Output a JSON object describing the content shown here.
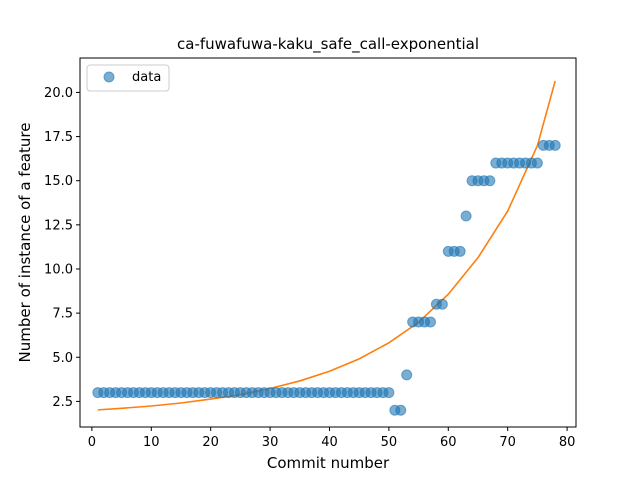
{
  "chart_data": {
    "type": "scatter",
    "title": "ca-fuwafuwa-kaku_safe_call-exponential",
    "xlabel": "Commit number",
    "ylabel": "Number of instance of a feature",
    "xlim": [
      -2,
      81.5
    ],
    "ylim": [
      1.05,
      21.95
    ],
    "xticks": [
      0,
      10,
      20,
      30,
      40,
      50,
      60,
      70,
      80
    ],
    "xtick_labels": [
      "0",
      "10",
      "20",
      "30",
      "40",
      "50",
      "60",
      "70",
      "80"
    ],
    "yticks": [
      2.5,
      5.0,
      7.5,
      10.0,
      12.5,
      15.0,
      17.5,
      20.0
    ],
    "ytick_labels": [
      "2.5",
      "5.0",
      "7.5",
      "10.0",
      "12.5",
      "15.0",
      "17.5",
      "20.0"
    ],
    "grid": false,
    "legend": {
      "position": "top-left",
      "entries": [
        "data"
      ]
    },
    "colors": {
      "data": "#1f77b4",
      "fit": "#ff7f0e"
    },
    "series": [
      {
        "name": "data",
        "kind": "scatter",
        "x": [
          1,
          2,
          3,
          4,
          5,
          6,
          7,
          8,
          9,
          10,
          11,
          12,
          13,
          14,
          15,
          16,
          17,
          18,
          19,
          20,
          21,
          22,
          23,
          24,
          25,
          26,
          27,
          28,
          29,
          30,
          31,
          32,
          33,
          34,
          35,
          36,
          37,
          38,
          39,
          40,
          41,
          42,
          43,
          44,
          45,
          46,
          47,
          48,
          49,
          50,
          51,
          52,
          53,
          54,
          55,
          56,
          57,
          58,
          59,
          60,
          61,
          62,
          63,
          64,
          65,
          66,
          67,
          68,
          69,
          70,
          71,
          72,
          73,
          74,
          75,
          76,
          77,
          78
        ],
        "y": [
          3,
          3,
          3,
          3,
          3,
          3,
          3,
          3,
          3,
          3,
          3,
          3,
          3,
          3,
          3,
          3,
          3,
          3,
          3,
          3,
          3,
          3,
          3,
          3,
          3,
          3,
          3,
          3,
          3,
          3,
          3,
          3,
          3,
          3,
          3,
          3,
          3,
          3,
          3,
          3,
          3,
          3,
          3,
          3,
          3,
          3,
          3,
          3,
          3,
          3,
          2,
          2,
          4,
          7,
          7,
          7,
          7,
          8,
          8,
          11,
          11,
          11,
          13,
          15,
          15,
          15,
          15,
          16,
          16,
          16,
          16,
          16,
          16,
          16,
          16,
          17,
          17,
          17
        ]
      },
      {
        "kind": "line",
        "x": [
          1,
          5,
          10,
          15,
          20,
          25,
          30,
          35,
          40,
          45,
          50,
          55,
          60,
          65,
          70,
          75,
          78
        ],
        "y": [
          2.02,
          2.11,
          2.24,
          2.41,
          2.63,
          2.88,
          3.23,
          3.66,
          4.21,
          4.91,
          5.82,
          6.98,
          8.57,
          10.64,
          13.28,
          16.99,
          20.65
        ]
      }
    ]
  }
}
